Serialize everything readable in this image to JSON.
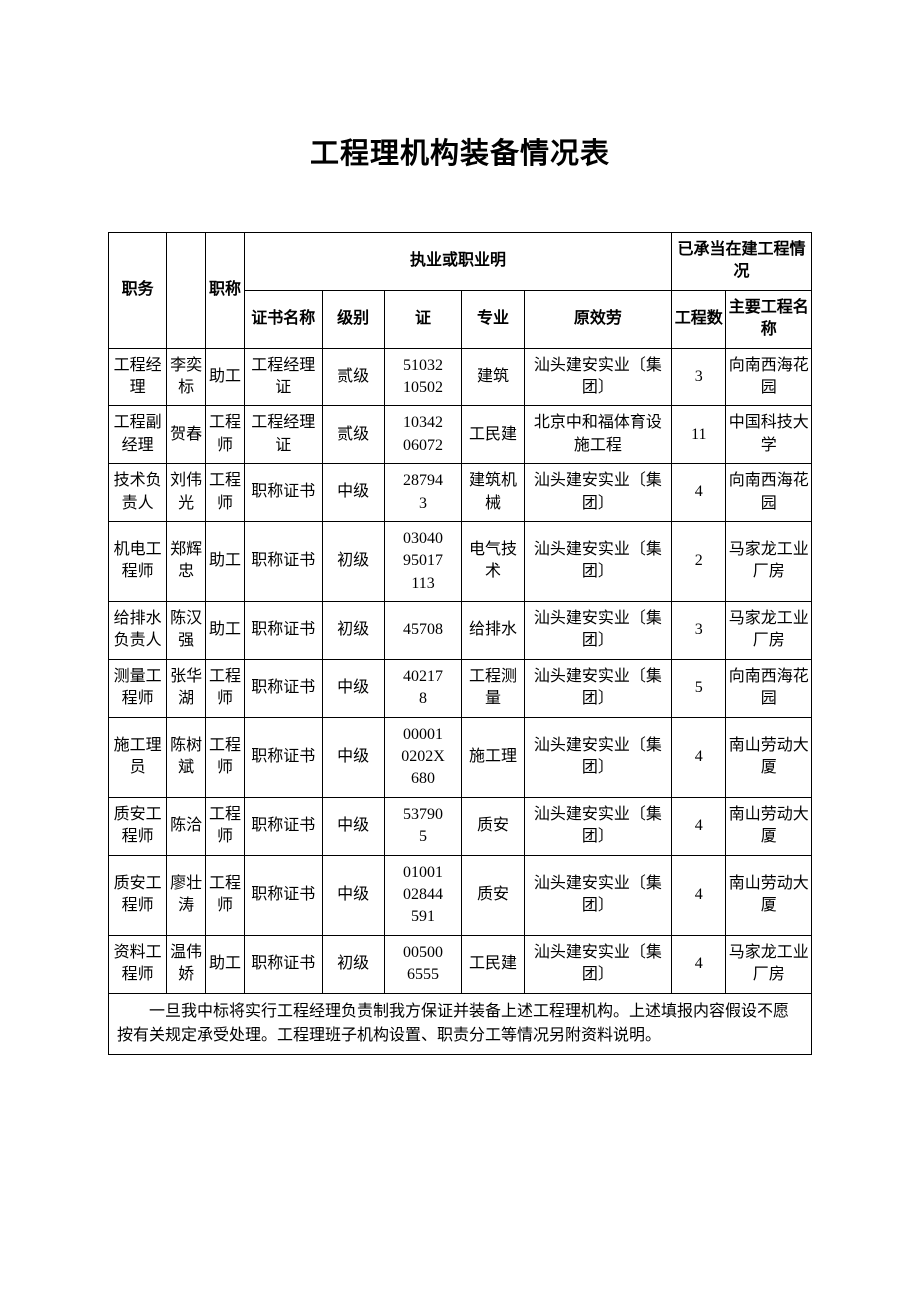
{
  "title": "工程理机构装备情况表",
  "headers": {
    "duty": "职务",
    "name_blank": "",
    "title": "职称",
    "qual_group": "执业或职业明",
    "cert_name": "证书名称",
    "level": "级别",
    "cert_no": "证",
    "spec": "专业",
    "org": "原效劳",
    "proj_group": "已承当在建工程情况",
    "count": "工程数",
    "proj_name": "主要工程名称"
  },
  "rows": [
    {
      "duty": "工程经理",
      "name": "李奕标",
      "title": "助工",
      "cert_name": "工程经理证",
      "level": "贰级",
      "cert_no": "5103210502",
      "spec": "建筑",
      "org": "汕头建安实业〔集团〕",
      "count": "3",
      "proj": "向南西海花园"
    },
    {
      "duty": "工程副经理",
      "name": "贺春",
      "title": "工程师",
      "cert_name": "工程经理证",
      "level": "贰级",
      "cert_no": "1034206072",
      "spec": "工民建",
      "org": "北京中和福体育设施工程",
      "count": "11",
      "proj": "中国科技大学"
    },
    {
      "duty": "技术负责人",
      "name": "刘伟光",
      "title": "工程师",
      "cert_name": "职称证书",
      "level": "中级",
      "cert_no": "287 943",
      "spec": "建筑机械",
      "org": "汕头建安实业〔集团〕",
      "count": "4",
      "proj": "向南西海花园"
    },
    {
      "duty": "机电工程师",
      "name": "郑辉忠",
      "title": "助工",
      "cert_name": "职称证书",
      "level": "初级",
      "cert_no": "0304095017113",
      "spec": "电气技术",
      "org": "汕头建安实业〔集团〕",
      "count": "2",
      "proj": "马家龙工业厂房"
    },
    {
      "duty": "给排水负责人",
      "name": "陈汉强",
      "title": "助工",
      "cert_name": "职称证书",
      "level": "初级",
      "cert_no": "45708",
      "spec": "给排水",
      "org": "汕头建安实业〔集团〕",
      "count": "3",
      "proj": "马家龙工业厂房"
    },
    {
      "duty": "测量工程师",
      "name": "张华湖",
      "title": "工程师",
      "cert_name": "职称证书",
      "level": "中级",
      "cert_no": "402 178",
      "spec": "工程测量",
      "org": "汕头建安实业〔集团〕",
      "count": "5",
      "proj": "向南西海花园"
    },
    {
      "duty": "施工理员",
      "name": "陈树斌",
      "title": "工程师",
      "cert_name": "职称证书",
      "level": "中级",
      "cert_no": "000010202X680",
      "spec": "施工理",
      "org": "汕头建安实业〔集团〕",
      "count": "4",
      "proj": "南山劳动大厦"
    },
    {
      "duty": "质安工程师",
      "name": "陈洽",
      "title": "工程师",
      "cert_name": "职称证书",
      "level": "中级",
      "cert_no": "537 905",
      "spec": "质安",
      "org": "汕头建安实业〔集团〕",
      "count": "4",
      "proj": "南山劳动大厦"
    },
    {
      "duty": "质安工程师",
      "name": "廖壮涛",
      "title": "工程师",
      "cert_name": "职称证书",
      "level": "中级",
      "cert_no": "0100102844591",
      "spec": "质安",
      "org": "汕头建安实业〔集团〕",
      "count": "4",
      "proj": "南山劳动大厦"
    },
    {
      "duty": "资料工程师",
      "name": "温伟娇",
      "title": "助工",
      "cert_name": "职称证书",
      "level": "初级",
      "cert_no": "005006555",
      "spec": "工民建",
      "org": "汕头建安实业〔集团〕",
      "count": "4",
      "proj": "马家龙工业厂房"
    }
  ],
  "footer": "一旦我中标将实行工程经理负责制我方保证并装备上述工程理机构。上述填报内容假设不愿按有关规定承受处理。工程理班子机构设置、职责分工等情况另附资料说明。",
  "style": {
    "font": "SimSun",
    "title_font": "SimHei",
    "title_fontsize": 29,
    "body_fontsize": 16,
    "background_color": "#ffffff",
    "text_color": "#000000",
    "border_color": "#000000"
  }
}
